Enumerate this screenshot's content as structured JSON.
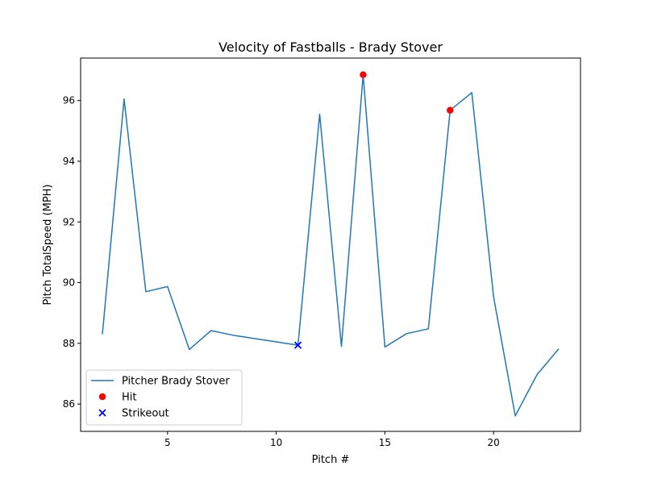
{
  "chart_data": {
    "type": "line",
    "title": "Velocity of Fastballs - Brady Stover",
    "xlabel": "Pitch #",
    "ylabel": "Pitch TotalSpeed (MPH)",
    "xlim": [
      1.0,
      24.0
    ],
    "ylim": [
      85.1,
      97.4
    ],
    "xticks": [
      5,
      10,
      15,
      20
    ],
    "yticks": [
      86,
      88,
      90,
      92,
      94,
      96
    ],
    "grid": false,
    "legend_position": "lower-left",
    "series": [
      {
        "name": "Pitcher Brady Stover",
        "kind": "line",
        "color": "#1f77b4",
        "x": [
          2,
          3,
          4,
          5,
          6,
          7,
          8,
          11,
          12,
          13,
          14,
          15,
          16,
          17,
          18,
          19,
          20,
          21,
          22,
          23
        ],
        "y": [
          88.3,
          96.05,
          89.7,
          89.87,
          87.8,
          88.42,
          88.27,
          87.94,
          95.55,
          87.9,
          96.85,
          87.88,
          88.32,
          88.48,
          95.68,
          96.26,
          89.53,
          85.61,
          86.97,
          87.82
        ]
      },
      {
        "name": "Hit",
        "kind": "scatter",
        "marker": "circle",
        "color": "#ff0000",
        "x": [
          14,
          18
        ],
        "y": [
          96.85,
          95.68
        ]
      },
      {
        "name": "Strikeout",
        "kind": "scatter",
        "marker": "x",
        "color": "#0000ff",
        "x": [
          11
        ],
        "y": [
          87.94
        ]
      }
    ]
  }
}
